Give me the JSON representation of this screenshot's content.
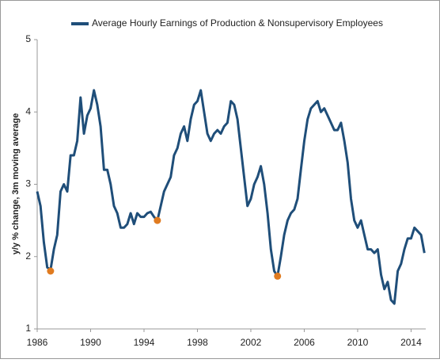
{
  "chart_data": {
    "type": "line",
    "y_label": "y/y % change, 3m moving average",
    "xlim": [
      1986,
      2015.1
    ],
    "xticks": [
      1986,
      1990,
      1994,
      1998,
      2002,
      2006,
      2010,
      2014
    ],
    "ylim": [
      1,
      5
    ],
    "yticks": [
      1,
      2,
      3,
      4,
      5
    ],
    "x": [
      1986,
      1986.25,
      1986.5,
      1986.75,
      1987,
      1987.25,
      1987.5,
      1987.75,
      1988,
      1988.25,
      1988.5,
      1988.75,
      1989,
      1989.25,
      1989.5,
      1989.75,
      1990,
      1990.25,
      1990.5,
      1990.75,
      1991,
      1991.25,
      1991.5,
      1991.75,
      1992,
      1992.25,
      1992.5,
      1992.75,
      1993,
      1993.25,
      1993.5,
      1993.75,
      1994,
      1994.25,
      1994.5,
      1994.75,
      1995,
      1995.25,
      1995.5,
      1995.75,
      1996,
      1996.25,
      1996.5,
      1996.75,
      1997,
      1997.25,
      1997.5,
      1997.75,
      1998,
      1998.25,
      1998.5,
      1998.75,
      1999,
      1999.25,
      1999.5,
      1999.75,
      2000,
      2000.25,
      2000.5,
      2000.75,
      2001,
      2001.25,
      2001.5,
      2001.75,
      2002,
      2002.25,
      2002.5,
      2002.75,
      2003,
      2003.25,
      2003.5,
      2003.75,
      2004,
      2004.25,
      2004.5,
      2004.75,
      2005,
      2005.25,
      2005.5,
      2005.75,
      2006,
      2006.25,
      2006.5,
      2006.75,
      2007,
      2007.25,
      2007.5,
      2007.75,
      2008,
      2008.25,
      2008.5,
      2008.75,
      2009,
      2009.25,
      2009.5,
      2009.75,
      2010,
      2010.25,
      2010.5,
      2010.75,
      2011,
      2011.25,
      2011.5,
      2011.75,
      2012,
      2012.25,
      2012.5,
      2012.75,
      2013,
      2013.25,
      2013.5,
      2013.75,
      2014,
      2014.25,
      2014.5,
      2014.75,
      2015
    ],
    "series": [
      {
        "name": "Average Hourly Earnings of Production & Nonsupervisory Employees",
        "color": "#1f4e79",
        "values": [
          2.9,
          2.7,
          2.2,
          1.85,
          1.82,
          2.1,
          2.3,
          2.9,
          3.0,
          2.9,
          3.4,
          3.4,
          3.6,
          4.2,
          3.7,
          3.95,
          4.05,
          4.3,
          4.1,
          3.8,
          3.2,
          3.2,
          3.0,
          2.7,
          2.6,
          2.4,
          2.4,
          2.45,
          2.6,
          2.45,
          2.6,
          2.55,
          2.55,
          2.6,
          2.62,
          2.55,
          2.5,
          2.7,
          2.9,
          3.0,
          3.1,
          3.4,
          3.5,
          3.7,
          3.8,
          3.6,
          3.9,
          4.1,
          4.15,
          4.3,
          4.0,
          3.7,
          3.6,
          3.7,
          3.75,
          3.7,
          3.8,
          3.85,
          4.15,
          4.1,
          3.9,
          3.5,
          3.1,
          2.7,
          2.8,
          3.0,
          3.1,
          3.25,
          3.0,
          2.6,
          2.1,
          1.8,
          1.73,
          2.0,
          2.3,
          2.5,
          2.6,
          2.65,
          2.8,
          3.2,
          3.6,
          3.9,
          4.05,
          4.1,
          4.15,
          4.0,
          4.05,
          3.95,
          3.85,
          3.75,
          3.75,
          3.85,
          3.6,
          3.3,
          2.8,
          2.5,
          2.4,
          2.5,
          2.3,
          2.1,
          2.1,
          2.05,
          2.1,
          1.75,
          1.55,
          1.65,
          1.4,
          1.35,
          1.8,
          1.9,
          2.1,
          2.25,
          2.25,
          2.4,
          2.35,
          2.3,
          2.05
        ]
      }
    ],
    "markers": {
      "color": "#e07b20",
      "x": [
        1987,
        1995,
        2004
      ],
      "values": [
        1.8,
        2.5,
        1.73
      ]
    }
  }
}
